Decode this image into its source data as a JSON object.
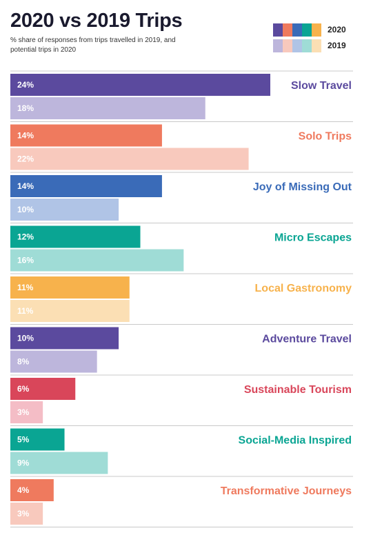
{
  "title": "2020 vs 2019 Trips",
  "subtitle": "% share of responses from trips travelled in 2019, and potential trips in 2020",
  "legend": [
    {
      "label": "2020",
      "colors": [
        "#5b4a9e",
        "#ef7a5e",
        "#3a6bb8",
        "#0aa593",
        "#f7b24c"
      ]
    },
    {
      "label": "2019",
      "colors": [
        "#bdb6dc",
        "#f8c9bd",
        "#b0c4e6",
        "#9fdcd6",
        "#fbdfb4"
      ]
    }
  ],
  "chart_data": {
    "type": "bar",
    "orientation": "horizontal",
    "xlim": [
      0,
      24
    ],
    "series": [
      {
        "name": "2020",
        "values": [
          24,
          14,
          14,
          12,
          11,
          10,
          6,
          5,
          4
        ]
      },
      {
        "name": "2019",
        "values": [
          18,
          22,
          10,
          16,
          11,
          8,
          3,
          9,
          3
        ]
      }
    ],
    "categories": [
      {
        "name": "Slow Travel",
        "color": "#5b4a9e",
        "color2019": "#bdb6dc"
      },
      {
        "name": "Solo Trips",
        "color": "#ef7a5e",
        "color2019": "#f8c9bd"
      },
      {
        "name": "Joy of Missing Out",
        "color": "#3a6bb8",
        "color2019": "#b0c4e6"
      },
      {
        "name": "Micro Escapes",
        "color": "#0aa593",
        "color2019": "#9fdcd6"
      },
      {
        "name": "Local Gastronomy",
        "color": "#f7b24c",
        "color2019": "#fbdfb4"
      },
      {
        "name": "Adventure Travel",
        "color": "#5b4a9e",
        "color2019": "#bdb6dc"
      },
      {
        "name": "Sustainable Tourism",
        "color": "#d9465a",
        "color2019": "#f4bdc6"
      },
      {
        "name": "Social-Media Inspired",
        "color": "#0aa593",
        "color2019": "#9fdcd6"
      },
      {
        "name": "Transformative Journeys",
        "color": "#ef7a5e",
        "color2019": "#f8c9bd"
      }
    ],
    "value_suffix": "%"
  }
}
